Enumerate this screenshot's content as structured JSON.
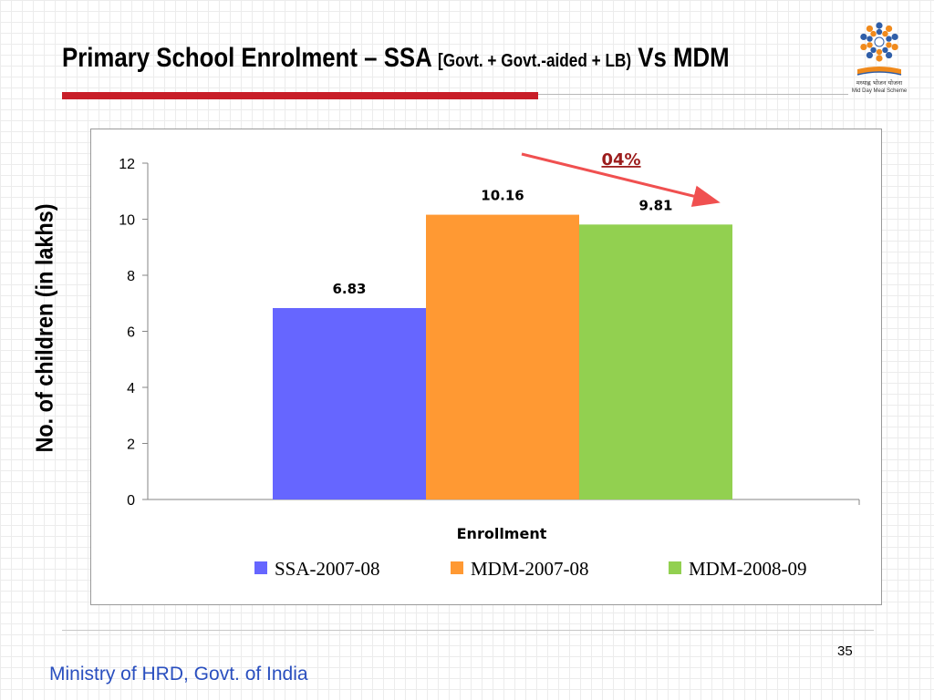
{
  "slide": {
    "title_main": "Primary School Enrolment – SSA ",
    "title_sub": "[Govt. + Govt.-aided + LB)",
    "title_end": " Vs MDM",
    "logo_text": "मध्याह्न भोजन योजना",
    "logo_subtext": "Mid Day Meal Scheme",
    "page_number": "35",
    "footer": "Ministry of HRD, Govt. of India",
    "colors": {
      "accent_red": "#c81e28",
      "footer_blue": "#2a4fbf",
      "logo_blue": "#2f5ea8",
      "logo_orange": "#f08a1c"
    }
  },
  "chart_data": {
    "type": "bar",
    "title": "",
    "xlabel": "Enrollment",
    "ylabel": "No. of children (in lakhs)",
    "ylim": [
      0,
      12
    ],
    "yticks": [
      0,
      2,
      4,
      6,
      8,
      10,
      12
    ],
    "grid": false,
    "legend_position": "bottom",
    "categories": [
      "Enrollment"
    ],
    "series": [
      {
        "name": "SSA-2007-08",
        "values": [
          6.83
        ],
        "color": "#6666ff"
      },
      {
        "name": "MDM-2007-08",
        "values": [
          10.16
        ],
        "color": "#ff9933"
      },
      {
        "name": "MDM-2008-09",
        "values": [
          9.81
        ],
        "color": "#92d050"
      }
    ],
    "data_labels": [
      "6.83",
      "10.16",
      "9.81"
    ],
    "annotation": {
      "text": "04%",
      "color": "#9c1c1c",
      "arrow_color": "#f05050"
    }
  }
}
